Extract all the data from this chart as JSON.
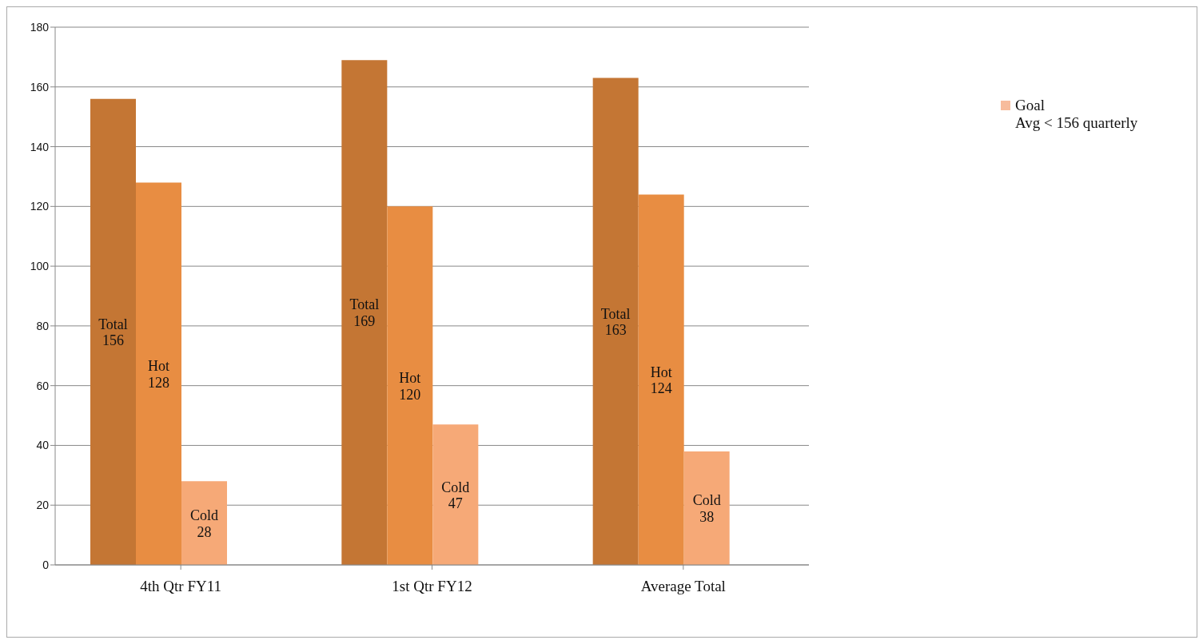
{
  "chart_data": {
    "type": "bar",
    "categories": [
      "4th Qtr FY11",
      "1st Qtr FY12",
      "Average Total"
    ],
    "series": [
      {
        "name": "Total",
        "color": "#c47634",
        "values": [
          156,
          169,
          163
        ]
      },
      {
        "name": "Hot",
        "color": "#e88d42",
        "values": [
          128,
          120,
          124
        ]
      },
      {
        "name": "Cold",
        "color": "#f6a977",
        "values": [
          28,
          47,
          38
        ]
      },
      {
        "name": "Goal\nAvg < 156 quarterly",
        "color": "#f7bc9c",
        "values": [
          null,
          null,
          null
        ]
      }
    ],
    "ylim": [
      0,
      180
    ],
    "yticks": [
      0,
      20,
      40,
      60,
      80,
      100,
      120,
      140,
      160,
      180
    ],
    "grid": "y",
    "legend": "top right",
    "data_labels": true
  }
}
